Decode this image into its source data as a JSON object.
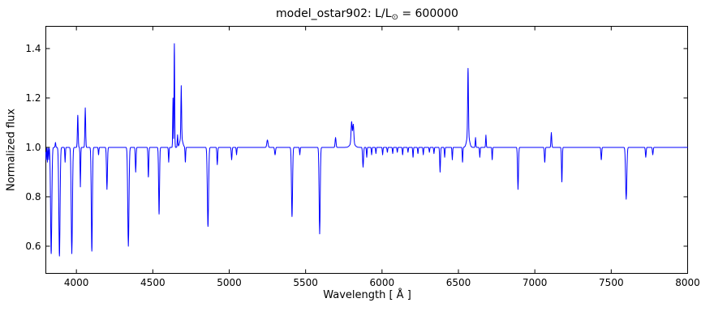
{
  "chart_data": {
    "type": "line",
    "title": "model_ostar902: L/L⊙ = 600000",
    "title_parts": {
      "prefix": "model_ostar902: L/L",
      "sub": "⊙",
      "suffix": " = 600000"
    },
    "xlabel": "Wavelength [ Å ]",
    "ylabel": "Normalized flux",
    "xlim": [
      3800,
      8000
    ],
    "ylim": [
      0.49,
      1.49
    ],
    "xticks": [
      4000,
      4500,
      5000,
      5500,
      6000,
      6500,
      7000,
      7500,
      8000
    ],
    "yticks": [
      0.6,
      0.8,
      1.0,
      1.2,
      1.4
    ],
    "grid": false,
    "legend": null,
    "line_color": "#0000ff",
    "axis_color": "#000000",
    "background": "#ffffff",
    "baseline": 1.0,
    "sample_step": 2,
    "features_format": "each feature = [center_wavelength_A, peak_amplitude_relative_to_baseline, gaussian_sigma_A]; negative amplitude = absorption dip, positive = emission peak",
    "features": [
      [
        3802,
        -0.05,
        1.5
      ],
      [
        3810,
        -0.06,
        1.5
      ],
      [
        3818,
        -0.05,
        1.5
      ],
      [
        3835,
        -0.43,
        4
      ],
      [
        3863,
        0.02,
        2
      ],
      [
        3889,
        -0.44,
        4
      ],
      [
        3926,
        -0.06,
        2
      ],
      [
        3970,
        -0.43,
        4
      ],
      [
        4009,
        0.13,
        2.5
      ],
      [
        4026,
        -0.16,
        2
      ],
      [
        4058,
        0.16,
        2.5
      ],
      [
        4101,
        -0.42,
        3.5
      ],
      [
        4145,
        -0.03,
        2
      ],
      [
        4200,
        -0.17,
        3
      ],
      [
        4340,
        -0.4,
        4
      ],
      [
        4388,
        -0.1,
        2.5
      ],
      [
        4471,
        -0.12,
        2.5
      ],
      [
        4541,
        -0.27,
        3
      ],
      [
        4604,
        -0.06,
        2
      ],
      [
        4632,
        0.2,
        1.8
      ],
      [
        4641,
        0.42,
        2
      ],
      [
        4662,
        0.05,
        2
      ],
      [
        4686,
        0.21,
        2.2
      ],
      [
        4686,
        0.04,
        9
      ],
      [
        4713,
        -0.06,
        2
      ],
      [
        4861,
        -0.32,
        4
      ],
      [
        4922,
        -0.07,
        2.5
      ],
      [
        5016,
        -0.05,
        2.5
      ],
      [
        5048,
        -0.03,
        2
      ],
      [
        5250,
        0.03,
        4
      ],
      [
        5300,
        -0.03,
        3
      ],
      [
        5411,
        -0.28,
        3.5
      ],
      [
        5462,
        -0.03,
        2
      ],
      [
        5592,
        -0.35,
        3.5
      ],
      [
        5696,
        0.04,
        3
      ],
      [
        5801,
        0.085,
        3.5
      ],
      [
        5806,
        0.02,
        14
      ],
      [
        5812,
        0.075,
        3.5
      ],
      [
        5876,
        -0.08,
        3
      ],
      [
        5900,
        -0.04,
        2
      ],
      [
        5932,
        -0.03,
        2
      ],
      [
        5960,
        -0.025,
        2
      ],
      [
        6004,
        -0.03,
        2
      ],
      [
        6035,
        -0.02,
        2
      ],
      [
        6070,
        -0.025,
        2
      ],
      [
        6100,
        -0.02,
        2
      ],
      [
        6135,
        -0.03,
        2
      ],
      [
        6170,
        -0.02,
        2
      ],
      [
        6203,
        -0.04,
        2
      ],
      [
        6235,
        -0.025,
        2
      ],
      [
        6270,
        -0.03,
        2
      ],
      [
        6310,
        -0.02,
        2
      ],
      [
        6340,
        -0.025,
        2
      ],
      [
        6380,
        -0.1,
        2.5
      ],
      [
        6410,
        -0.04,
        2
      ],
      [
        6460,
        -0.05,
        2
      ],
      [
        6527,
        -0.06,
        2
      ],
      [
        6563,
        0.27,
        2.5
      ],
      [
        6563,
        0.05,
        9
      ],
      [
        6612,
        0.04,
        2
      ],
      [
        6640,
        -0.04,
        2
      ],
      [
        6680,
        0.05,
        2
      ],
      [
        6721,
        -0.05,
        2
      ],
      [
        6890,
        -0.17,
        3
      ],
      [
        7065,
        -0.06,
        2.5
      ],
      [
        7108,
        0.06,
        2.5
      ],
      [
        7177,
        -0.14,
        2.5
      ],
      [
        7435,
        -0.05,
        2.5
      ],
      [
        7598,
        -0.21,
        4
      ],
      [
        7726,
        -0.04,
        2.5
      ],
      [
        7772,
        -0.03,
        2.5
      ]
    ]
  }
}
